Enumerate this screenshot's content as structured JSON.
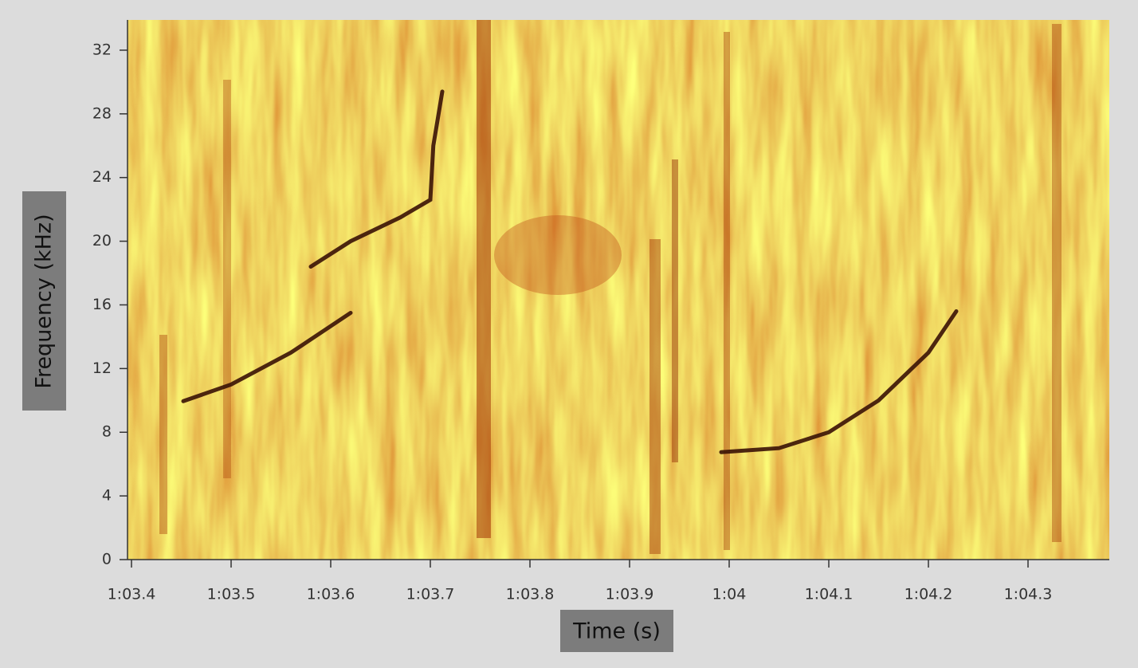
{
  "chart_data": {
    "type": "spectrogram",
    "x_label": "Time (s)",
    "y_label": "Frequency (kHz)",
    "xlim": [
      63.396,
      64.3816
    ],
    "ylim": [
      0,
      33.9
    ],
    "xticks": [
      {
        "value": 63.4,
        "label": "1:03.4"
      },
      {
        "value": 63.5,
        "label": "1:03.5"
      },
      {
        "value": 63.6,
        "label": "1:03.6"
      },
      {
        "value": 63.7,
        "label": "1:03.7"
      },
      {
        "value": 63.8,
        "label": "1:03.8"
      },
      {
        "value": 63.9,
        "label": "1:03.9"
      },
      {
        "value": 64.0,
        "label": "1:04"
      },
      {
        "value": 64.1,
        "label": "1:04.1"
      },
      {
        "value": 64.2,
        "label": "1:04.2"
      },
      {
        "value": 64.3,
        "label": "1:04.3"
      }
    ],
    "yticks": [
      0,
      4,
      8,
      12,
      16,
      20,
      24,
      28,
      32
    ],
    "series": [
      {
        "color": "#3a1205",
        "x": [
          63.452,
          63.5,
          63.56,
          63.62
        ],
        "values": [
          9.95,
          11,
          13,
          15.5
        ]
      },
      {
        "color": "#3a1205",
        "x": [
          63.58,
          63.62,
          63.67,
          63.7,
          63.703,
          63.712
        ],
        "values": [
          18.4,
          20,
          21.5,
          22.6,
          26,
          29.4
        ]
      },
      {
        "color": "#3a1205",
        "x": [
          63.992,
          64.05,
          64.1,
          64.15,
          64.2,
          64.228
        ],
        "values": [
          6.75,
          7,
          8,
          10,
          13,
          15.6
        ]
      }
    ]
  }
}
